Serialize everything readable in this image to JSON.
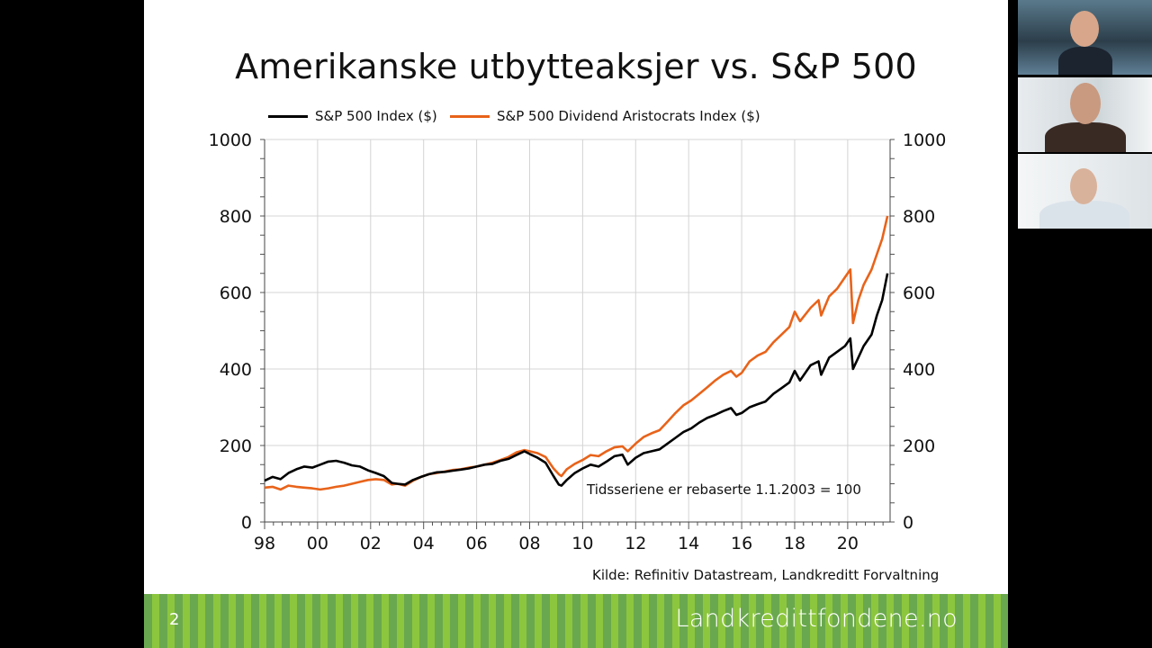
{
  "slide": {
    "title": "Amerikanske utbytteaksjer vs. S&P 500",
    "note": "Tidsseriene er rebaserte 1.1.2003 = 100",
    "source": "Kilde: Refinitiv Datastream, Landkreditt Forvaltning",
    "page_number": "2",
    "brand": "Landkredittfondene.no"
  },
  "colors": {
    "sp500": "#000000",
    "aristocrats": "#e8631a",
    "footer_green": "#7ab648"
  },
  "chart_data": {
    "type": "line",
    "xlabels": [
      "98",
      "00",
      "02",
      "04",
      "06",
      "08",
      "10",
      "12",
      "14",
      "16",
      "18",
      "20"
    ],
    "xlim": [
      1998,
      2021.6
    ],
    "ylim": [
      0,
      1000
    ],
    "yticks": [
      0,
      200,
      400,
      600,
      800,
      1000
    ],
    "grid": true,
    "legend": "top",
    "series": [
      {
        "name": "S&P 500 Index ($)",
        "color": "#000000",
        "points": [
          [
            1998.0,
            108
          ],
          [
            1998.3,
            118
          ],
          [
            1998.6,
            112
          ],
          [
            1998.9,
            128
          ],
          [
            1999.2,
            138
          ],
          [
            1999.5,
            145
          ],
          [
            1999.8,
            142
          ],
          [
            2000.1,
            150
          ],
          [
            2000.4,
            158
          ],
          [
            2000.7,
            160
          ],
          [
            2001.0,
            155
          ],
          [
            2001.3,
            148
          ],
          [
            2001.6,
            145
          ],
          [
            2001.9,
            135
          ],
          [
            2002.2,
            128
          ],
          [
            2002.5,
            120
          ],
          [
            2002.8,
            102
          ],
          [
            2003.0,
            100
          ],
          [
            2003.3,
            98
          ],
          [
            2003.6,
            110
          ],
          [
            2003.9,
            118
          ],
          [
            2004.2,
            125
          ],
          [
            2004.5,
            130
          ],
          [
            2004.8,
            131
          ],
          [
            2005.1,
            134
          ],
          [
            2005.4,
            137
          ],
          [
            2005.7,
            140
          ],
          [
            2006.0,
            145
          ],
          [
            2006.3,
            150
          ],
          [
            2006.6,
            152
          ],
          [
            2006.9,
            160
          ],
          [
            2007.2,
            165
          ],
          [
            2007.5,
            175
          ],
          [
            2007.8,
            185
          ],
          [
            2008.0,
            178
          ],
          [
            2008.3,
            168
          ],
          [
            2008.6,
            155
          ],
          [
            2008.9,
            120
          ],
          [
            2009.1,
            98
          ],
          [
            2009.2,
            95
          ],
          [
            2009.4,
            110
          ],
          [
            2009.7,
            128
          ],
          [
            2010.0,
            140
          ],
          [
            2010.3,
            150
          ],
          [
            2010.6,
            145
          ],
          [
            2010.9,
            158
          ],
          [
            2011.2,
            172
          ],
          [
            2011.5,
            176
          ],
          [
            2011.7,
            150
          ],
          [
            2012.0,
            168
          ],
          [
            2012.3,
            180
          ],
          [
            2012.6,
            185
          ],
          [
            2012.9,
            190
          ],
          [
            2013.2,
            205
          ],
          [
            2013.5,
            220
          ],
          [
            2013.8,
            235
          ],
          [
            2014.1,
            245
          ],
          [
            2014.4,
            260
          ],
          [
            2014.7,
            272
          ],
          [
            2015.0,
            280
          ],
          [
            2015.3,
            290
          ],
          [
            2015.6,
            298
          ],
          [
            2015.8,
            280
          ],
          [
            2016.0,
            285
          ],
          [
            2016.3,
            300
          ],
          [
            2016.6,
            308
          ],
          [
            2016.9,
            315
          ],
          [
            2017.2,
            335
          ],
          [
            2017.5,
            350
          ],
          [
            2017.8,
            365
          ],
          [
            2018.0,
            395
          ],
          [
            2018.2,
            370
          ],
          [
            2018.6,
            410
          ],
          [
            2018.9,
            420
          ],
          [
            2019.0,
            385
          ],
          [
            2019.3,
            430
          ],
          [
            2019.6,
            445
          ],
          [
            2019.9,
            460
          ],
          [
            2020.1,
            480
          ],
          [
            2020.2,
            400
          ],
          [
            2020.4,
            430
          ],
          [
            2020.6,
            460
          ],
          [
            2020.9,
            490
          ],
          [
            2021.1,
            540
          ],
          [
            2021.3,
            580
          ],
          [
            2021.5,
            650
          ]
        ]
      },
      {
        "name": "S&P 500 Dividend Aristocrats Index ($)",
        "color": "#e8631a",
        "points": [
          [
            1998.0,
            90
          ],
          [
            1998.3,
            92
          ],
          [
            1998.6,
            85
          ],
          [
            1998.9,
            95
          ],
          [
            1999.2,
            92
          ],
          [
            1999.5,
            90
          ],
          [
            1999.8,
            88
          ],
          [
            2000.1,
            85
          ],
          [
            2000.4,
            88
          ],
          [
            2000.7,
            92
          ],
          [
            2001.0,
            95
          ],
          [
            2001.3,
            100
          ],
          [
            2001.6,
            105
          ],
          [
            2001.9,
            110
          ],
          [
            2002.2,
            112
          ],
          [
            2002.5,
            110
          ],
          [
            2002.8,
            98
          ],
          [
            2003.0,
            100
          ],
          [
            2003.3,
            95
          ],
          [
            2003.6,
            108
          ],
          [
            2003.9,
            118
          ],
          [
            2004.2,
            125
          ],
          [
            2004.5,
            128
          ],
          [
            2004.8,
            132
          ],
          [
            2005.1,
            136
          ],
          [
            2005.4,
            138
          ],
          [
            2005.7,
            142
          ],
          [
            2006.0,
            145
          ],
          [
            2006.3,
            150
          ],
          [
            2006.6,
            155
          ],
          [
            2006.9,
            162
          ],
          [
            2007.2,
            170
          ],
          [
            2007.5,
            182
          ],
          [
            2007.8,
            188
          ],
          [
            2008.0,
            185
          ],
          [
            2008.3,
            180
          ],
          [
            2008.6,
            170
          ],
          [
            2008.9,
            140
          ],
          [
            2009.1,
            125
          ],
          [
            2009.2,
            120
          ],
          [
            2009.4,
            138
          ],
          [
            2009.7,
            152
          ],
          [
            2010.0,
            162
          ],
          [
            2010.3,
            175
          ],
          [
            2010.6,
            172
          ],
          [
            2010.9,
            185
          ],
          [
            2011.2,
            195
          ],
          [
            2011.5,
            198
          ],
          [
            2011.7,
            185
          ],
          [
            2012.0,
            205
          ],
          [
            2012.3,
            222
          ],
          [
            2012.6,
            232
          ],
          [
            2012.9,
            240
          ],
          [
            2013.2,
            262
          ],
          [
            2013.5,
            285
          ],
          [
            2013.8,
            305
          ],
          [
            2014.1,
            318
          ],
          [
            2014.4,
            335
          ],
          [
            2014.7,
            352
          ],
          [
            2015.0,
            370
          ],
          [
            2015.3,
            385
          ],
          [
            2015.6,
            395
          ],
          [
            2015.8,
            380
          ],
          [
            2016.0,
            390
          ],
          [
            2016.3,
            420
          ],
          [
            2016.6,
            435
          ],
          [
            2016.9,
            445
          ],
          [
            2017.2,
            470
          ],
          [
            2017.5,
            490
          ],
          [
            2017.8,
            510
          ],
          [
            2018.0,
            550
          ],
          [
            2018.2,
            525
          ],
          [
            2018.6,
            560
          ],
          [
            2018.9,
            580
          ],
          [
            2019.0,
            540
          ],
          [
            2019.3,
            590
          ],
          [
            2019.6,
            610
          ],
          [
            2019.9,
            640
          ],
          [
            2020.1,
            660
          ],
          [
            2020.2,
            520
          ],
          [
            2020.4,
            580
          ],
          [
            2020.6,
            620
          ],
          [
            2020.9,
            660
          ],
          [
            2021.1,
            700
          ],
          [
            2021.3,
            740
          ],
          [
            2021.5,
            800
          ]
        ]
      }
    ]
  }
}
